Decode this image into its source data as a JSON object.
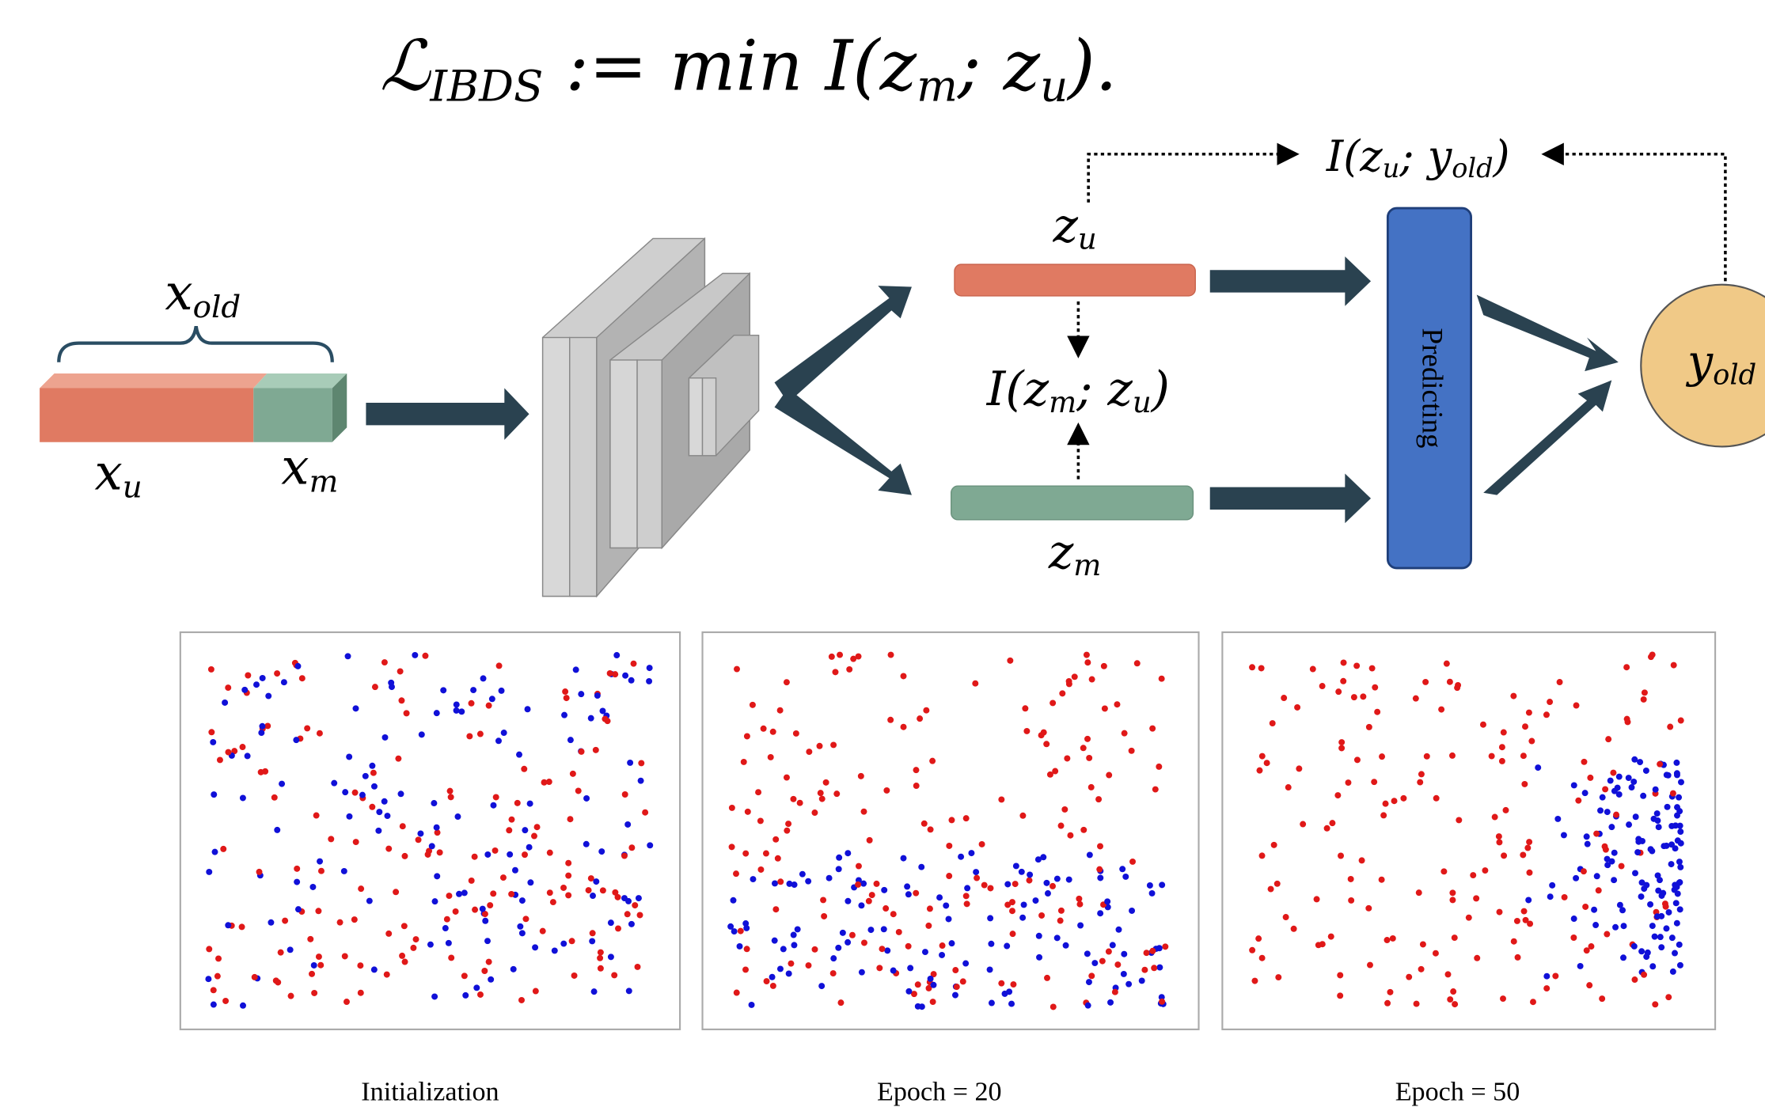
{
  "formula": [
    "ℒ",
    "IBDS",
    " := min I(z",
    "m",
    "; z",
    "u",
    ")."
  ],
  "input": {
    "x_old": [
      "x",
      "old"
    ],
    "x_u": [
      "x",
      "u"
    ],
    "x_m": [
      "x",
      "m"
    ]
  },
  "features": {
    "z_u": [
      "z",
      "u"
    ],
    "z_m": [
      "z",
      "m"
    ],
    "mutual": [
      "I(z",
      "m",
      "; z",
      "u",
      ")"
    ]
  },
  "predictor": {
    "label": "Predicting",
    "output": [
      "y",
      "old"
    ],
    "mutual": [
      "I(z",
      "u",
      "; y",
      "old",
      ")"
    ]
  },
  "panels": [
    "Initialization",
    "Epoch = 20",
    "Epoch = 50"
  ]
}
